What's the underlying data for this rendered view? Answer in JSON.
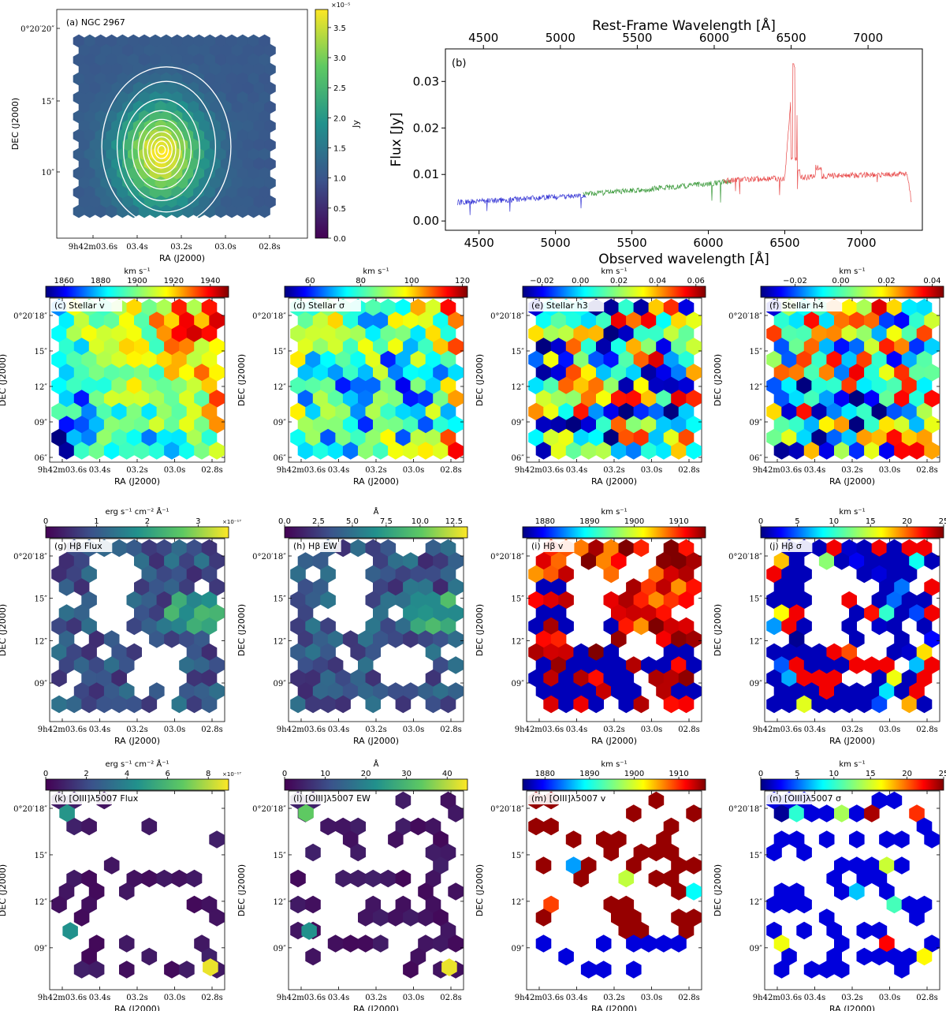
{
  "chart_data": [
    {
      "id": "a",
      "type": "heatmap",
      "label": "(a) NGC 2967",
      "cbar_title": "Jy",
      "cbar_exponent": "×10⁻⁵",
      "cbar_ticks": [
        "0.0",
        "0.5",
        "1.0",
        "1.5",
        "2.0",
        "2.5",
        "3.0",
        "3.5"
      ],
      "cbar_range": [
        0.0,
        3.8
      ],
      "cmap": "viridis",
      "xlabel": "RA (J2000)",
      "ylabel": "DEC (J2000)",
      "xticks": [
        "9h42m03.6s",
        "03.4s",
        "03.2s",
        "03.0s",
        "02.8s"
      ],
      "yticks": [
        "0°20′20″",
        "15″",
        "10″"
      ],
      "contours": true
    },
    {
      "id": "b",
      "type": "line",
      "label": "(b)",
      "xlabel": "Observed wavelength [Å]",
      "ylabel": "Flux [Jy]",
      "top_xlabel": "Rest-Frame Wavelength [Å]",
      "xlim": [
        4280,
        7400
      ],
      "ylim": [
        -0.002,
        0.037
      ],
      "xticks": [
        "4500",
        "5000",
        "5500",
        "6000",
        "6500",
        "7000"
      ],
      "top_xticks": [
        "4500",
        "5000",
        "5500",
        "6000",
        "6500",
        "7000"
      ],
      "yticks": [
        "0.00",
        "0.01",
        "0.02",
        "0.03"
      ],
      "series": [
        {
          "name": "blue arm",
          "color": "#3b3bd6",
          "x": [
            4360,
            4500,
            4700,
            4900,
            5100,
            5200
          ],
          "y": [
            0.004,
            0.0042,
            0.0046,
            0.005,
            0.0054,
            0.0056
          ]
        },
        {
          "name": "green arm",
          "color": "#3f9c3f",
          "x": [
            5180,
            5400,
            5600,
            5800,
            6000,
            6150
          ],
          "y": [
            0.0057,
            0.0063,
            0.0068,
            0.0074,
            0.008,
            0.0085
          ]
        },
        {
          "name": "red arm",
          "color": "#e84a4a",
          "x": [
            6100,
            6300,
            6500,
            6560,
            6600,
            6700,
            6900,
            7100,
            7300,
            7330
          ],
          "y": [
            0.0086,
            0.009,
            0.0092,
            0.035,
            0.0093,
            0.0095,
            0.0098,
            0.01,
            0.0102,
            0.004
          ]
        }
      ]
    },
    {
      "id": "c",
      "type": "heatmap",
      "label": "(c) Stellar v",
      "cbar_title": "km s⁻¹",
      "cbar_ticks": [
        "1860",
        "1880",
        "1900",
        "1920",
        "1940"
      ],
      "cbar_range": [
        1850,
        1950
      ],
      "cmap": "jet",
      "xlabel": "RA (J2000)",
      "ylabel": "DEC (J2000)",
      "xticks": [
        "9h42m03.6s",
        "03.4s",
        "03.2s",
        "03.0s",
        "02.8s"
      ],
      "yticks": [
        "0°20′18″",
        "15″",
        "12″",
        "09″",
        "06″"
      ]
    },
    {
      "id": "d",
      "type": "heatmap",
      "label": "(d) Stellar σ",
      "cbar_title": "km s⁻¹",
      "cbar_ticks": [
        "60",
        "80",
        "100",
        "120"
      ],
      "cbar_range": [
        50,
        122
      ],
      "cmap": "jet",
      "xlabel": "RA (J2000)",
      "ylabel": "DEC (J2000)",
      "xticks": [
        "9h42m03.6s",
        "03.4s",
        "03.2s",
        "03.0s",
        "02.8s"
      ],
      "yticks": [
        "0°20′18″",
        "15″",
        "12″",
        "09″",
        "06″"
      ]
    },
    {
      "id": "e",
      "type": "heatmap",
      "label": "(e) Stellar h3",
      "cbar_title": "km s⁻¹",
      "cbar_ticks": [
        "−0.02",
        "0.00",
        "0.02",
        "0.04",
        "0.06"
      ],
      "cbar_range": [
        -0.03,
        0.065
      ],
      "cmap": "jet",
      "xlabel": "RA (J2000)",
      "ylabel": "DEC (J2000)",
      "xticks": [
        "9h42m03.6s",
        "03.4s",
        "03.2s",
        "03.0s",
        "02.8s"
      ],
      "yticks": [
        "0°20′18″",
        "15″",
        "12″",
        "09″",
        "06″"
      ]
    },
    {
      "id": "f",
      "type": "heatmap",
      "label": "(f) Stellar h4",
      "cbar_title": "km s⁻¹",
      "cbar_ticks": [
        "−0.02",
        "0.00",
        "0.02",
        "0.04"
      ],
      "cbar_range": [
        -0.035,
        0.045
      ],
      "cmap": "jet",
      "xlabel": "RA (J2000)",
      "ylabel": "DEC (J2000)",
      "xticks": [
        "9h42m03.6s",
        "03.4s",
        "03.2s",
        "03.0s",
        "02.8s"
      ],
      "yticks": [
        "0°20′18″",
        "15″",
        "12″",
        "09″",
        "06″"
      ]
    },
    {
      "id": "g",
      "type": "heatmap",
      "label": "(g) Hβ Flux",
      "cbar_title": "erg s⁻¹ cm⁻² Å⁻¹",
      "cbar_exponent": "×10⁻¹⁷",
      "cbar_ticks": [
        "0",
        "1",
        "2",
        "3"
      ],
      "cbar_range": [
        0,
        3.6
      ],
      "cmap": "viridis",
      "xlabel": "RA (J2000)",
      "ylabel": "DEC (J2000)",
      "xticks": [
        "9h42m03.6s",
        "03.4s",
        "03.2s",
        "03.0s",
        "02.8s"
      ],
      "yticks": [
        "0°20′18″",
        "15″",
        "12″",
        "09″"
      ]
    },
    {
      "id": "h",
      "type": "heatmap",
      "label": "(h) Hβ EW",
      "cbar_title": "Å",
      "cbar_ticks": [
        "0.0",
        "2.5",
        "5.0",
        "7.5",
        "10.0",
        "12.5"
      ],
      "cbar_range": [
        0,
        13.5
      ],
      "cmap": "viridis",
      "xlabel": "RA (J2000)",
      "ylabel": "DEC (J2000)",
      "xticks": [
        "9h42m03.6s",
        "03.4s",
        "03.2s",
        "03.0s",
        "02.8s"
      ],
      "yticks": [
        "0°20′18″",
        "15″",
        "12″",
        "09″"
      ]
    },
    {
      "id": "i",
      "type": "heatmap",
      "label": "(i) Hβ v",
      "cbar_title": "km s⁻¹",
      "cbar_ticks": [
        "1880",
        "1890",
        "1900",
        "1910"
      ],
      "cbar_range": [
        1875,
        1916
      ],
      "cmap": "jet",
      "xlabel": "RA (J2000)",
      "ylabel": "DEC (J2000)",
      "xticks": [
        "9h42m03.6s",
        "03.4s",
        "03.2s",
        "03.0s",
        "02.8s"
      ],
      "yticks": [
        "0°20′18″",
        "15″",
        "12″",
        "09″"
      ]
    },
    {
      "id": "j",
      "type": "heatmap",
      "label": "(j) Hβ σ",
      "cbar_title": "km s⁻¹",
      "cbar_ticks": [
        "0",
        "5",
        "10",
        "15",
        "20",
        "25"
      ],
      "cbar_range": [
        0,
        25
      ],
      "cmap": "jet",
      "xlabel": "RA (J2000)",
      "ylabel": "DEC (J2000)",
      "xticks": [
        "9h42m03.6s",
        "03.4s",
        "03.2s",
        "03.0s",
        "02.8s"
      ],
      "yticks": [
        "0°20′18″",
        "15″",
        "12″",
        "09″"
      ]
    },
    {
      "id": "k",
      "type": "heatmap",
      "label": "(k) [OIII]λ5007 Flux",
      "cbar_title": "erg s⁻¹ cm⁻² Å⁻¹",
      "cbar_exponent": "×10⁻¹⁷",
      "cbar_ticks": [
        "0",
        "2",
        "4",
        "6",
        "8"
      ],
      "cbar_range": [
        0,
        9
      ],
      "cmap": "viridis",
      "xlabel": "RA (J2000)",
      "ylabel": "DEC (J2000)",
      "xticks": [
        "9h42m03.6s",
        "03.4s",
        "03.2s",
        "03.0s",
        "02.8s"
      ],
      "yticks": [
        "0°20′18″",
        "15″",
        "12″",
        "09″"
      ]
    },
    {
      "id": "l",
      "type": "heatmap",
      "label": "(l) [OIII]λ5007 EW",
      "cbar_title": "Å",
      "cbar_ticks": [
        "0",
        "10",
        "20",
        "30",
        "40"
      ],
      "cbar_range": [
        0,
        45
      ],
      "cmap": "viridis",
      "xlabel": "RA (J2000)",
      "ylabel": "DEC (J2000)",
      "xticks": [
        "9h42m03.6s",
        "03.4s",
        "03.2s",
        "03.0s",
        "02.8s"
      ],
      "yticks": [
        "0°20′18″",
        "15″",
        "12″",
        "09″"
      ]
    },
    {
      "id": "m",
      "type": "heatmap",
      "label": "(m) [OIII]λ5007 v",
      "cbar_title": "km s⁻¹",
      "cbar_ticks": [
        "1880",
        "1890",
        "1900",
        "1910"
      ],
      "cbar_range": [
        1875,
        1916
      ],
      "cmap": "jet",
      "xlabel": "RA (J2000)",
      "ylabel": "DEC (J2000)",
      "xticks": [
        "9h42m03.6s",
        "03.4s",
        "03.2s",
        "03.0s",
        "02.8s"
      ],
      "yticks": [
        "0°20′18″",
        "15″",
        "12″",
        "09″"
      ]
    },
    {
      "id": "n",
      "type": "heatmap",
      "label": "(n) [OIII]λ5007 σ",
      "cbar_title": "km s⁻¹",
      "cbar_ticks": [
        "0",
        "5",
        "10",
        "15",
        "20",
        "25"
      ],
      "cbar_range": [
        0,
        25
      ],
      "cmap": "jet",
      "xlabel": "RA (J2000)",
      "ylabel": "DEC (J2000)",
      "xticks": [
        "9h42m03.6s",
        "03.4s",
        "03.2s",
        "03.0s",
        "02.8s"
      ],
      "yticks": [
        "0°20′18″",
        "15″",
        "12″",
        "09″"
      ]
    }
  ]
}
